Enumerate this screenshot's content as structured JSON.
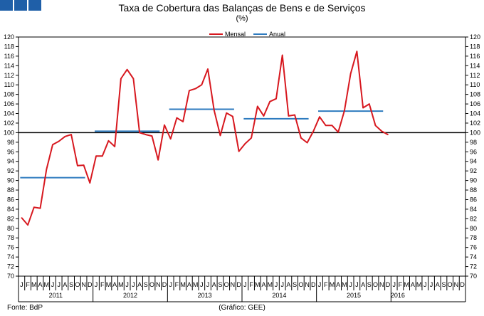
{
  "colors": {
    "logo": "#1f5fa8",
    "mensal": "#d7181f",
    "anual": "#2e7bbf",
    "reference": "#000000"
  },
  "title": "Taxa de Cobertura das Balanças de Bens e de Serviços",
  "subtitle": "(%)",
  "source": "Fonte: BdP",
  "credit": "(Gráfico: GEE)",
  "chart_data": {
    "type": "line",
    "title": "Taxa de Cobertura das Balanças de Bens e de Serviços",
    "unit": "(%)",
    "ylim": [
      70,
      120
    ],
    "y_ticks": [
      70,
      72,
      74,
      76,
      78,
      80,
      82,
      84,
      86,
      88,
      90,
      92,
      94,
      96,
      98,
      100,
      102,
      104,
      106,
      108,
      110,
      112,
      114,
      116,
      118,
      120
    ],
    "reference_line": 100,
    "legend": {
      "placement": "top-center",
      "entries": [
        "Mensal",
        "Anual"
      ]
    },
    "month_labels": [
      "J",
      "F",
      "M",
      "A",
      "M",
      "J",
      "J",
      "A",
      "S",
      "O",
      "N",
      "D"
    ],
    "years": [
      "2011",
      "2012",
      "2013",
      "2014",
      "2015",
      "2016"
    ],
    "series": [
      {
        "name": "Mensal",
        "values": [
          82.2,
          80.7,
          84.4,
          84.2,
          92.3,
          97.5,
          98.2,
          99.2,
          99.6,
          93.1,
          93.2,
          89.5,
          95.1,
          95.1,
          98.3,
          97.1,
          111.3,
          113.2,
          111.3,
          100.0,
          99.6,
          99.3,
          94.3,
          101.6,
          98.7,
          103.1,
          102.3,
          108.8,
          109.2,
          110.0,
          113.3,
          104.7,
          99.4,
          104.1,
          103.4,
          96.1,
          97.7,
          98.9,
          105.5,
          103.5,
          106.5,
          107.1,
          116.2,
          103.5,
          103.7,
          98.9,
          97.9,
          100.3,
          103.3,
          101.5,
          101.5,
          100.1,
          104.6,
          112.3,
          117.0,
          105.2,
          106.0,
          101.5,
          100.3,
          99.6
        ]
      },
      {
        "name": "Anual",
        "segments": [
          {
            "year": "2011",
            "value": 90.6
          },
          {
            "year": "2012",
            "value": 100.3
          },
          {
            "year": "2013",
            "value": 104.9
          },
          {
            "year": "2014",
            "value": 102.9
          },
          {
            "year": "2015",
            "value": 104.5
          }
        ]
      }
    ]
  }
}
